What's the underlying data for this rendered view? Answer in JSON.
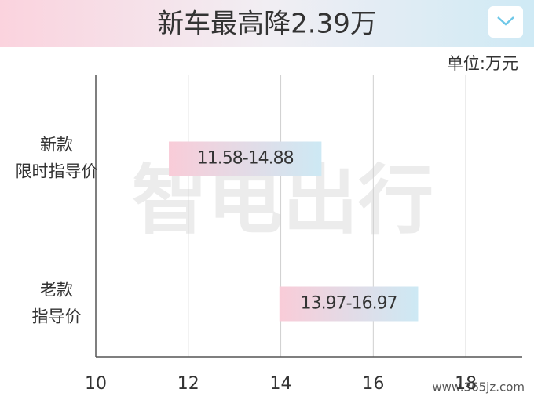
{
  "chart_data": {
    "type": "range_bar",
    "title": "新车最高降2.39万",
    "unit": "单位:万元",
    "categories": [
      [
        "新款",
        "限时指导价"
      ],
      [
        "老款",
        "指导价"
      ]
    ],
    "values": [
      [
        11.58,
        14.88
      ],
      [
        13.97,
        16.97
      ]
    ],
    "value_labels": [
      "11.58-14.88",
      "13.97-16.97"
    ],
    "color_start": "#f9ccd8",
    "color_end": "#cde9f4",
    "xlim": [
      10,
      19
    ],
    "xticks": [
      10,
      12,
      14,
      16,
      18
    ],
    "grid": true,
    "watermark": "智电出行",
    "source": "www.365jz.com"
  }
}
